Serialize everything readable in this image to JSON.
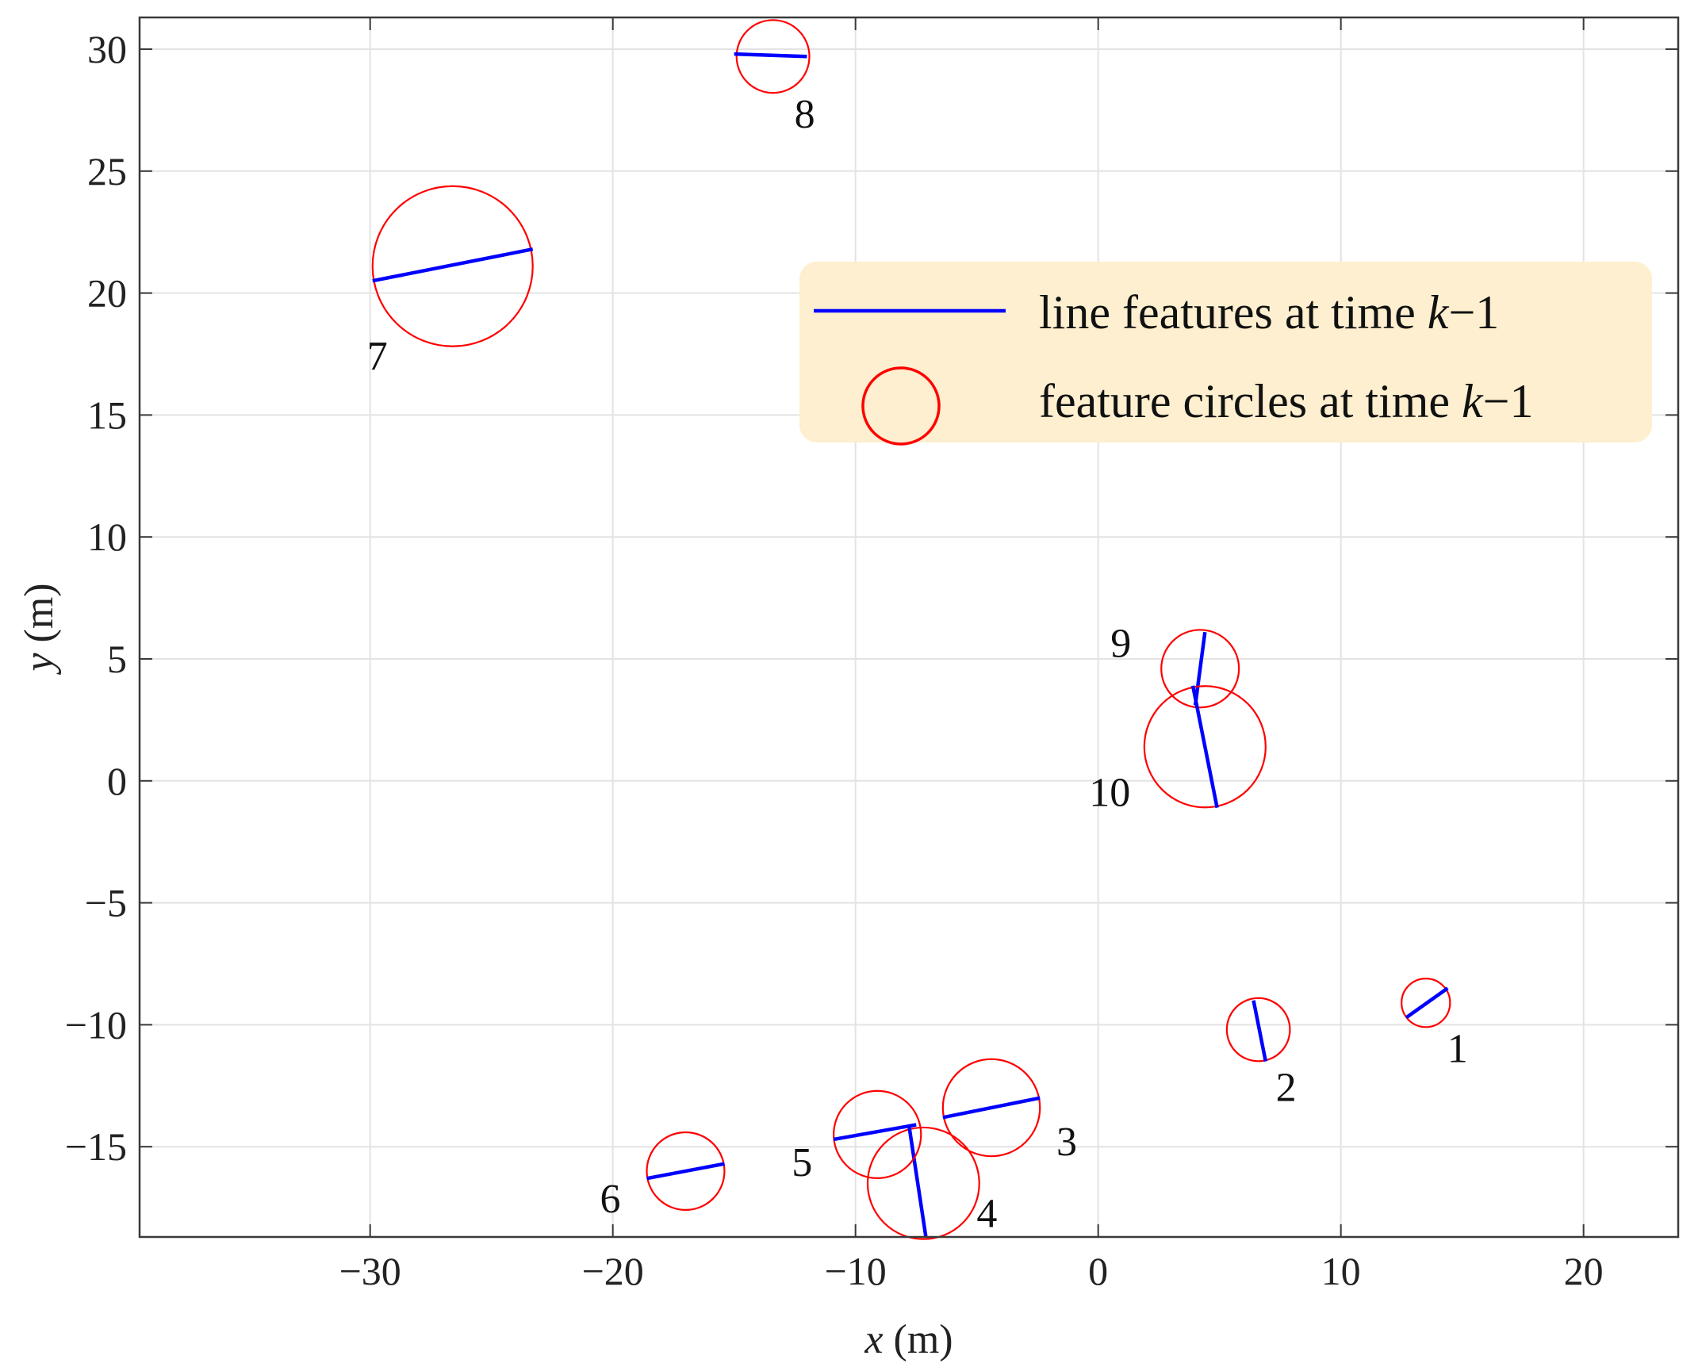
{
  "chart_data": {
    "type": "scatter",
    "xlabel": {
      "var": "x",
      "unit": " (m)"
    },
    "ylabel": {
      "var": "y",
      "unit": " (m)"
    },
    "xlim": [
      -39.5,
      23.9
    ],
    "ylim": [
      -18.7,
      31.3
    ],
    "xticks": [
      -30,
      -20,
      -10,
      0,
      10,
      20
    ],
    "yticks": [
      -15,
      -10,
      -5,
      0,
      5,
      10,
      15,
      20,
      25,
      30
    ],
    "grid": true,
    "legend": {
      "placement": "top-right",
      "background": "#fdefcf",
      "entries": [
        {
          "kind": "line",
          "color": "#0000ff",
          "text_before": "line features at time ",
          "var": "k",
          "text_after": "−1"
        },
        {
          "kind": "circle",
          "color": "#ff0000",
          "text_before": "feature circles at time ",
          "var": "k",
          "text_after": "−1"
        }
      ]
    },
    "colors": {
      "line": "#0000ff",
      "circle": "#ff0000"
    },
    "features": [
      {
        "id": "1",
        "circle": {
          "cx": 13.5,
          "cy": -9.1,
          "r": 1.0
        },
        "segment": [
          [
            12.7,
            -9.7
          ],
          [
            14.4,
            -8.5
          ]
        ]
      },
      {
        "id": "2",
        "circle": {
          "cx": 6.6,
          "cy": -10.2,
          "r": 1.3
        },
        "segment": [
          [
            6.4,
            -9.0
          ],
          [
            6.9,
            -11.5
          ]
        ]
      },
      {
        "id": "3",
        "circle": {
          "cx": -4.4,
          "cy": -13.4,
          "r": 2.0
        },
        "segment": [
          [
            -6.4,
            -13.8
          ],
          [
            -2.4,
            -13.0
          ]
        ]
      },
      {
        "id": "4",
        "circle": {
          "cx": -7.2,
          "cy": -16.5,
          "r": 2.3
        },
        "segment": [
          [
            -7.8,
            -14.1
          ],
          [
            -7.1,
            -18.7
          ]
        ]
      },
      {
        "id": "5",
        "circle": {
          "cx": -9.1,
          "cy": -14.5,
          "r": 1.8
        },
        "segment": [
          [
            -10.9,
            -14.7
          ],
          [
            -7.5,
            -14.1
          ]
        ]
      },
      {
        "id": "6",
        "circle": {
          "cx": -17.0,
          "cy": -16.0,
          "r": 1.6
        },
        "segment": [
          [
            -18.6,
            -16.3
          ],
          [
            -15.4,
            -15.7
          ]
        ]
      },
      {
        "id": "7",
        "circle": {
          "cx": -26.6,
          "cy": 21.1,
          "r": 3.3
        },
        "segment": [
          [
            -29.9,
            20.5
          ],
          [
            -23.3,
            21.8
          ]
        ]
      },
      {
        "id": "8",
        "circle": {
          "cx": -13.4,
          "cy": 29.7,
          "r": 1.5
        },
        "segment": [
          [
            -15.0,
            29.8
          ],
          [
            -12.0,
            29.7
          ]
        ]
      },
      {
        "id": "9",
        "circle": {
          "cx": 4.2,
          "cy": 4.6,
          "r": 1.6
        },
        "segment": [
          [
            4.4,
            6.1
          ],
          [
            4.0,
            3.1
          ]
        ]
      },
      {
        "id": "10",
        "circle": {
          "cx": 4.4,
          "cy": 1.4,
          "r": 2.5
        },
        "segment": [
          [
            3.9,
            3.9
          ],
          [
            4.9,
            -1.1
          ]
        ]
      }
    ]
  }
}
